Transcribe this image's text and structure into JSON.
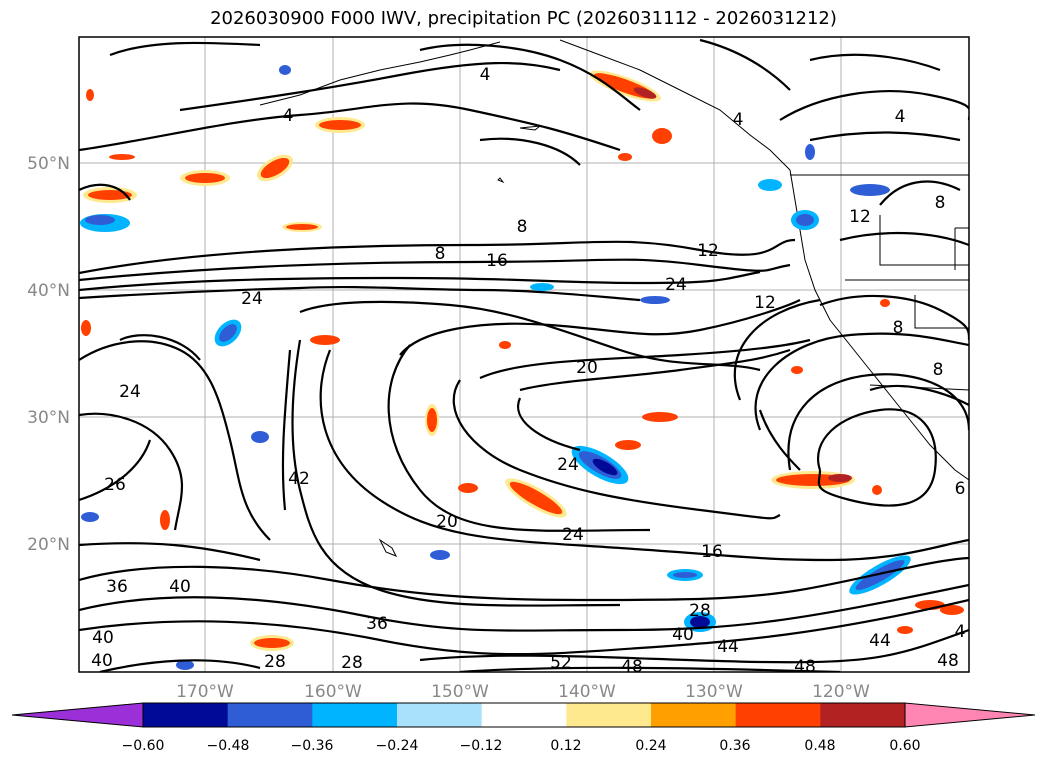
{
  "title": "2026030900 F000 IWV, precipitation PC (2026031112 - 2026031212)",
  "lat_labels": [
    "50°N",
    "40°N",
    "30°N",
    "20°N"
  ],
  "lon_labels": [
    "170°W",
    "160°W",
    "150°W",
    "140°W",
    "130°W",
    "120°W"
  ],
  "contour_labels": [
    "4",
    "4",
    "4",
    "4",
    "8",
    "8",
    "8",
    "8",
    "8",
    "12",
    "12",
    "12",
    "16",
    "16",
    "20",
    "20",
    "24",
    "24",
    "24",
    "24",
    "24",
    "26",
    "28",
    "28",
    "28",
    "36",
    "36",
    "40",
    "40",
    "40",
    "40",
    "42",
    "44",
    "44",
    "48",
    "48",
    "52",
    "6",
    "4",
    "48"
  ],
  "colorbar": {
    "ticks": [
      "−0.60",
      "−0.48",
      "−0.36",
      "−0.24",
      "−0.12",
      "0.12",
      "0.24",
      "0.36",
      "0.48",
      "0.60"
    ],
    "colors": [
      "#9b30d9",
      "#000a96",
      "#2f5dd6",
      "#00b4ff",
      "#a9e1fb",
      "#ffffff",
      "#ffe98f",
      "#ff9f00",
      "#ff4000",
      "#b22222",
      "#ff85b3"
    ]
  }
}
